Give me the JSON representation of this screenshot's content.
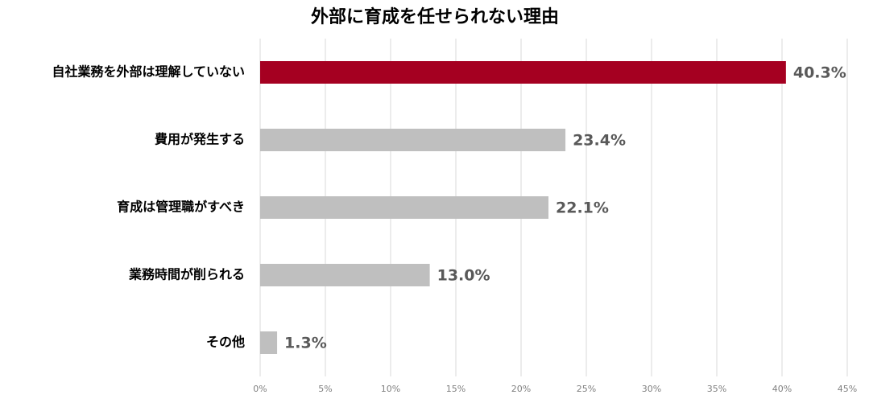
{
  "chart_data": {
    "type": "barh",
    "title": "外部に育成を任せられない理由",
    "categories": [
      "自社業務を外部は理解していない",
      "費用が発生する",
      "育成は管理職がすべき",
      "業務時間が削られる",
      "その他"
    ],
    "values": [
      40.3,
      23.4,
      22.1,
      13.0,
      1.3
    ],
    "value_labels": [
      "40.3%",
      "23.4%",
      "22.1%",
      "13.0%",
      "1.3%"
    ],
    "colors": [
      "#a50021",
      "#bfbfbf",
      "#bfbfbf",
      "#bfbfbf",
      "#bfbfbf"
    ],
    "xlim": [
      0,
      45
    ],
    "xticks": [
      {
        "value": 0,
        "label": "0%"
      },
      {
        "value": 5,
        "label": "5%"
      },
      {
        "value": 10,
        "label": "10%"
      },
      {
        "value": 15,
        "label": "15%"
      },
      {
        "value": 20,
        "label": "20%"
      },
      {
        "value": 25,
        "label": "25%"
      },
      {
        "value": 30,
        "label": "30%"
      },
      {
        "value": 35,
        "label": "35%"
      },
      {
        "value": 40,
        "label": "40%"
      },
      {
        "value": 45,
        "label": "45%"
      }
    ],
    "grid": true
  }
}
